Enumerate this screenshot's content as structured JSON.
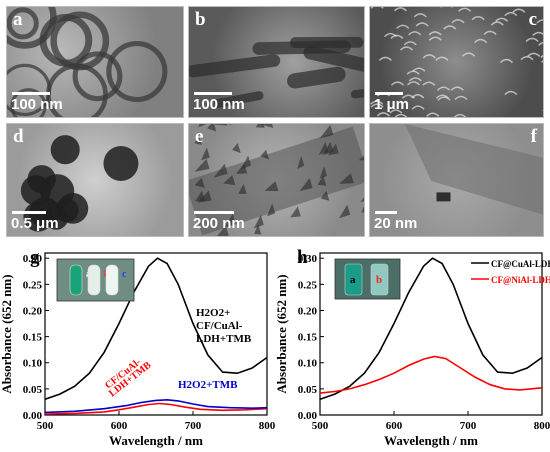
{
  "micrographs": [
    {
      "label": "a",
      "scale": "100 nm"
    },
    {
      "label": "b",
      "scale": "100 nm"
    },
    {
      "label": "c",
      "scale": "1 μm"
    },
    {
      "label": "d",
      "scale": "0.5 μm"
    },
    {
      "label": "e",
      "scale": "200 nm"
    },
    {
      "label": "f",
      "scale": "20 nm"
    }
  ],
  "chart_data": [
    {
      "panel": "g",
      "type": "line",
      "xlabel": "Wavelength / nm",
      "ylabel": "Absorbance (652 nm)",
      "xlim": [
        500,
        800
      ],
      "ylim": [
        0,
        0.31
      ],
      "xticks": [
        500,
        600,
        700,
        800
      ],
      "yticks": [
        0.0,
        0.05,
        0.1,
        0.15,
        0.2,
        0.25,
        0.3
      ],
      "inset_tube_labels": [
        "a",
        "b",
        "c"
      ],
      "series": [
        {
          "name": "H2O2+CF/CuAl-LDH+TMB",
          "color": "#000000",
          "x": [
            500,
            520,
            540,
            560,
            580,
            600,
            620,
            640,
            652,
            665,
            680,
            700,
            720,
            740,
            760,
            780,
            800
          ],
          "y": [
            0.03,
            0.04,
            0.055,
            0.08,
            0.12,
            0.175,
            0.235,
            0.285,
            0.3,
            0.29,
            0.25,
            0.175,
            0.115,
            0.082,
            0.08,
            0.09,
            0.11
          ]
        },
        {
          "name": "CF/CuAl-LDH+TMB",
          "color": "#ff0000",
          "x": [
            500,
            540,
            580,
            600,
            620,
            640,
            655,
            670,
            690,
            710,
            740,
            770,
            800
          ],
          "y": [
            0.002,
            0.003,
            0.006,
            0.01,
            0.015,
            0.02,
            0.022,
            0.02,
            0.015,
            0.011,
            0.009,
            0.01,
            0.012
          ]
        },
        {
          "name": "H2O2+TMB",
          "color": "#0000cc",
          "x": [
            500,
            540,
            580,
            610,
            630,
            650,
            665,
            680,
            700,
            720,
            750,
            780,
            800
          ],
          "y": [
            0.005,
            0.007,
            0.012,
            0.018,
            0.024,
            0.028,
            0.029,
            0.027,
            0.021,
            0.016,
            0.014,
            0.013,
            0.014
          ]
        }
      ],
      "annotations": [
        "H2O2+",
        "CF/CuAl-",
        "LDH+TMB",
        "CF/CuAl-",
        "LDH+TMB",
        "H2O2+TMB"
      ]
    },
    {
      "panel": "h",
      "type": "line",
      "xlabel": "Wavelength / nm",
      "ylabel": "Absorbance (652 nm)",
      "xlim": [
        500,
        800
      ],
      "ylim": [
        0,
        0.31
      ],
      "xticks": [
        500,
        600,
        700,
        800
      ],
      "yticks": [
        0.0,
        0.05,
        0.1,
        0.15,
        0.2,
        0.25,
        0.3
      ],
      "inset_tube_labels": [
        "a",
        "b"
      ],
      "series": [
        {
          "name": "CF@CuAl-LDH (a)",
          "color": "#000000",
          "x": [
            500,
            520,
            540,
            560,
            580,
            600,
            620,
            640,
            652,
            665,
            680,
            700,
            720,
            740,
            760,
            780,
            800
          ],
          "y": [
            0.03,
            0.04,
            0.055,
            0.08,
            0.12,
            0.175,
            0.235,
            0.285,
            0.3,
            0.29,
            0.25,
            0.175,
            0.115,
            0.082,
            0.08,
            0.09,
            0.11
          ]
        },
        {
          "name": "CF@NiAl-LDH (b)",
          "color": "#ff0000",
          "x": [
            500,
            520,
            540,
            560,
            580,
            600,
            620,
            640,
            655,
            670,
            690,
            710,
            730,
            750,
            770,
            800
          ],
          "y": [
            0.042,
            0.045,
            0.05,
            0.058,
            0.068,
            0.08,
            0.095,
            0.107,
            0.112,
            0.108,
            0.09,
            0.072,
            0.058,
            0.05,
            0.048,
            0.052
          ]
        }
      ]
    }
  ],
  "panel_labels": {
    "g": "g",
    "h": "h"
  }
}
